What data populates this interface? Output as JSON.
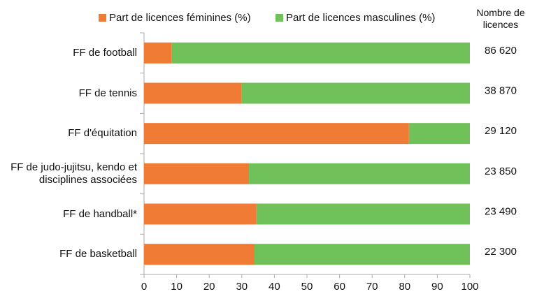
{
  "chart_data": {
    "type": "stacked_bar_horizontal",
    "categories": [
      "FF de football",
      "FF de tennis",
      "FF d'équitation",
      "FF de judo-jujitsu, kendo et disciplines associées",
      "FF de handball*",
      "FF de basketball"
    ],
    "series": [
      {
        "name": "Part de licences féminines (%)",
        "color": "#f07b35",
        "values": [
          8.4,
          30,
          81.3,
          32.2,
          34.5,
          33.9
        ]
      },
      {
        "name": "Part de licences masculines (%)",
        "color": "#71c15a",
        "values": [
          91.6,
          70,
          18.7,
          67.8,
          65.5,
          66.1
        ]
      }
    ],
    "xlim": [
      0,
      100
    ],
    "xticks": [
      0,
      10,
      20,
      30,
      40,
      50,
      60,
      70,
      80,
      90,
      100
    ],
    "licences_header": "Nombre de licences",
    "licences": [
      {
        "value": 86620,
        "label": "86 620"
      },
      {
        "value": 38870,
        "label": "38 870"
      },
      {
        "value": 29120,
        "label": "29 120"
      },
      {
        "value": 23850,
        "label": "23 850"
      },
      {
        "value": 23490,
        "label": "23 490"
      },
      {
        "value": 22300,
        "label": "22 300"
      }
    ],
    "legend": "top"
  }
}
